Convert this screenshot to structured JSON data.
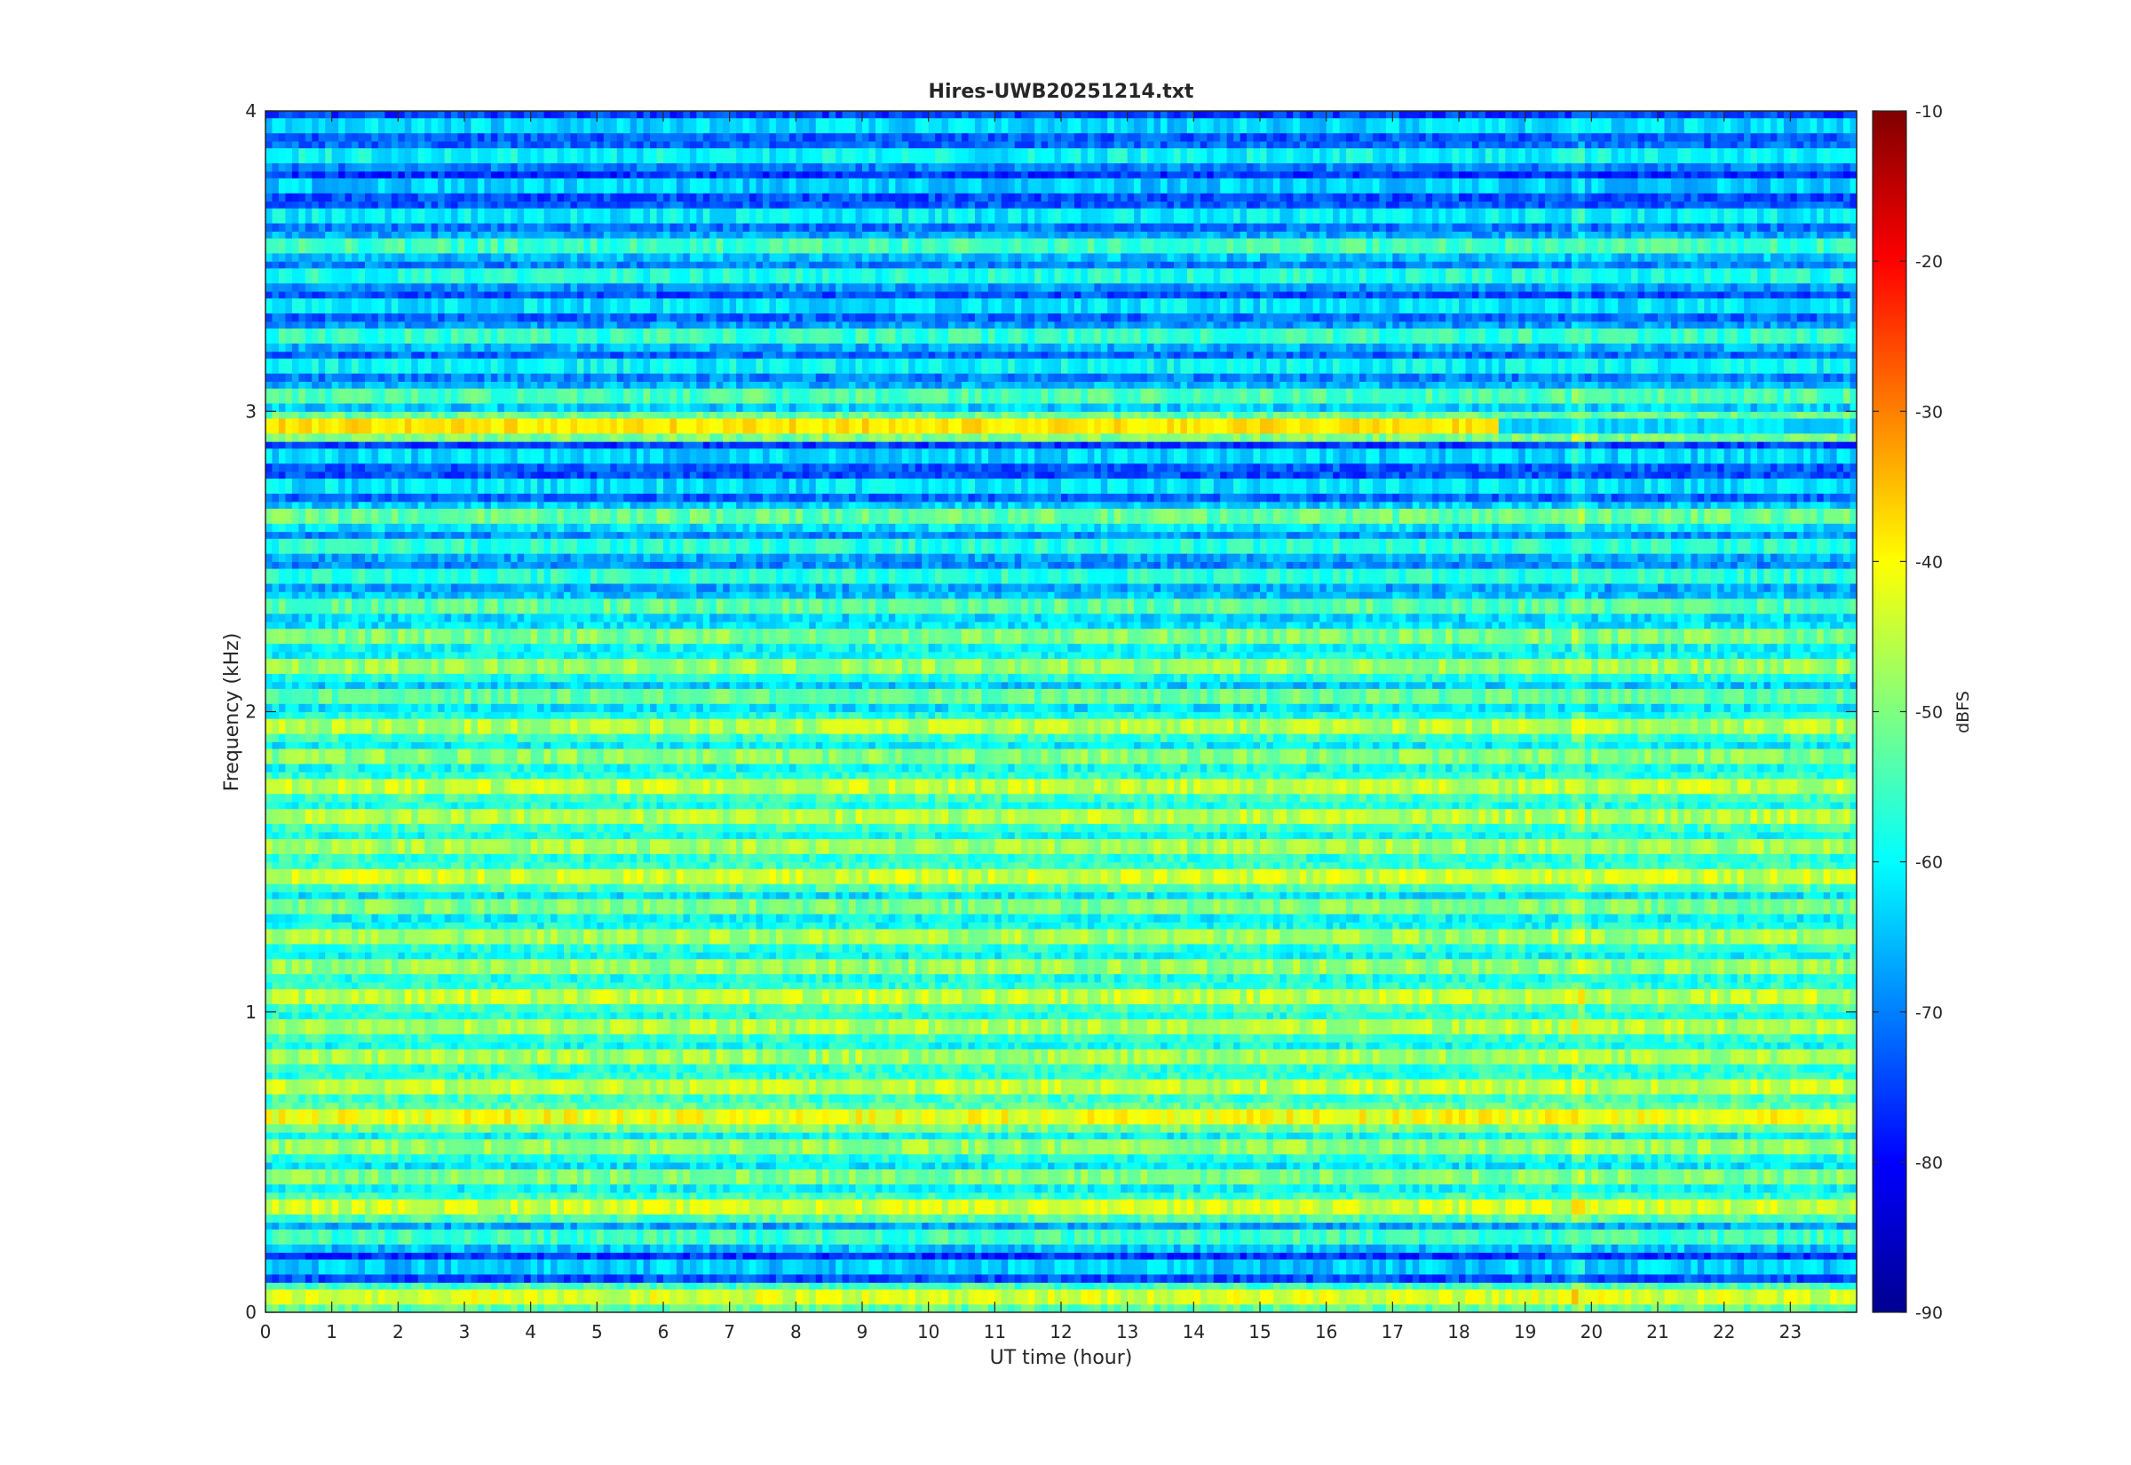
{
  "chart_data": {
    "type": "heatmap",
    "title": "Hires-UWB20251214.txt",
    "xlabel": "UT time (hour)",
    "ylabel": "Frequency (kHz)",
    "xlim": [
      0,
      24
    ],
    "ylim": [
      0,
      4
    ],
    "x_ticks": [
      "0",
      "1",
      "2",
      "3",
      "4",
      "5",
      "6",
      "7",
      "8",
      "9",
      "10",
      "11",
      "12",
      "13",
      "14",
      "15",
      "16",
      "17",
      "18",
      "19",
      "20",
      "21",
      "22",
      "23"
    ],
    "y_ticks": [
      "0",
      "1",
      "2",
      "3",
      "4"
    ],
    "colorbar": {
      "label": "dBFS",
      "clim": [
        -90,
        -10
      ],
      "ticks": [
        "-90",
        "-80",
        "-70",
        "-60",
        "-50",
        "-40",
        "-30",
        "-20",
        "-10"
      ],
      "colormap": "jet"
    },
    "band_spacing_khz": 0.1,
    "bands": [
      {
        "f": 0.05,
        "level": -43
      },
      {
        "f": 0.15,
        "level": -64
      },
      {
        "f": 0.25,
        "level": -55
      },
      {
        "f": 0.35,
        "level": -44
      },
      {
        "f": 0.45,
        "level": -50
      },
      {
        "f": 0.55,
        "level": -48
      },
      {
        "f": 0.65,
        "level": -41
      },
      {
        "f": 0.75,
        "level": -45
      },
      {
        "f": 0.85,
        "level": -47
      },
      {
        "f": 0.95,
        "level": -46
      },
      {
        "f": 1.05,
        "level": -45
      },
      {
        "f": 1.15,
        "level": -48
      },
      {
        "f": 1.25,
        "level": -47
      },
      {
        "f": 1.35,
        "level": -50
      },
      {
        "f": 1.45,
        "level": -44
      },
      {
        "f": 1.55,
        "level": -47
      },
      {
        "f": 1.65,
        "level": -46
      },
      {
        "f": 1.75,
        "level": -45
      },
      {
        "f": 1.85,
        "level": -49
      },
      {
        "f": 1.95,
        "level": -46
      },
      {
        "f": 2.05,
        "level": -52
      },
      {
        "f": 2.15,
        "level": -48
      },
      {
        "f": 2.25,
        "level": -50
      },
      {
        "f": 2.35,
        "level": -53
      },
      {
        "f": 2.45,
        "level": -57
      },
      {
        "f": 2.55,
        "level": -57
      },
      {
        "f": 2.65,
        "level": -52
      },
      {
        "f": 2.75,
        "level": -62
      },
      {
        "f": 2.85,
        "level": -63
      },
      {
        "f": 2.95,
        "level": -40
      },
      {
        "f": 3.05,
        "level": -54
      },
      {
        "f": 3.15,
        "level": -60
      },
      {
        "f": 3.25,
        "level": -56
      },
      {
        "f": 3.35,
        "level": -62
      },
      {
        "f": 3.45,
        "level": -58
      },
      {
        "f": 3.55,
        "level": -55
      },
      {
        "f": 3.65,
        "level": -61
      },
      {
        "f": 3.75,
        "level": -64
      },
      {
        "f": 3.85,
        "level": -60
      },
      {
        "f": 3.95,
        "level": -63
      }
    ],
    "background_level": -63,
    "strong_line": {
      "f": 2.95,
      "x_end": 18.6,
      "level": -38
    },
    "vertical_line_x": 19.8
  }
}
